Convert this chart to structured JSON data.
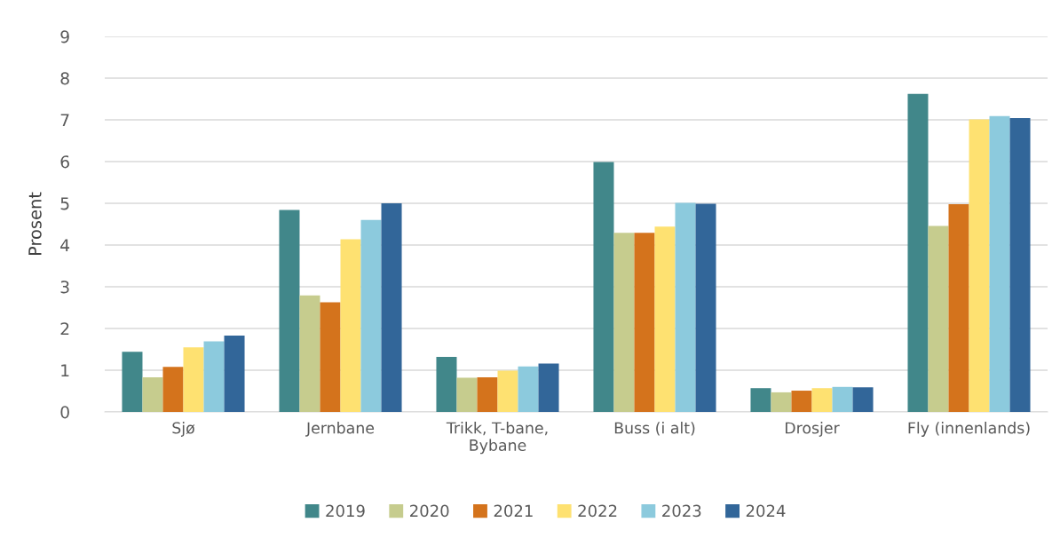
{
  "chart_data": {
    "type": "bar",
    "ylabel": "Prosent",
    "categories": [
      "Sjø",
      "Jernbane",
      "Trikk, T-bane,\nBybane",
      "Buss (i alt)",
      "Drosjer",
      "Fly (innenlands)"
    ],
    "series": [
      {
        "name": "2019",
        "color": "#41878a",
        "values": [
          1.44,
          4.84,
          1.32,
          5.99,
          0.57,
          7.62
        ]
      },
      {
        "name": "2020",
        "color": "#c6cc8e",
        "values": [
          0.83,
          2.79,
          0.82,
          4.29,
          0.47,
          4.46
        ]
      },
      {
        "name": "2021",
        "color": "#d4731c",
        "values": [
          1.08,
          2.63,
          0.83,
          4.29,
          0.51,
          4.98
        ]
      },
      {
        "name": "2022",
        "color": "#fee171",
        "values": [
          1.55,
          4.14,
          0.99,
          4.44,
          0.57,
          7.01
        ]
      },
      {
        "name": "2023",
        "color": "#8ccadd",
        "values": [
          1.69,
          4.6,
          1.09,
          5.01,
          0.6,
          7.09
        ]
      },
      {
        "name": "2024",
        "color": "#326699",
        "values": [
          1.83,
          5.0,
          1.16,
          4.99,
          0.59,
          7.04
        ]
      }
    ],
    "ylim": [
      0,
      9
    ],
    "yticks": [
      0,
      1,
      2,
      3,
      4,
      5,
      6,
      7,
      8,
      9
    ],
    "grid": "y",
    "legend": "bottom"
  }
}
